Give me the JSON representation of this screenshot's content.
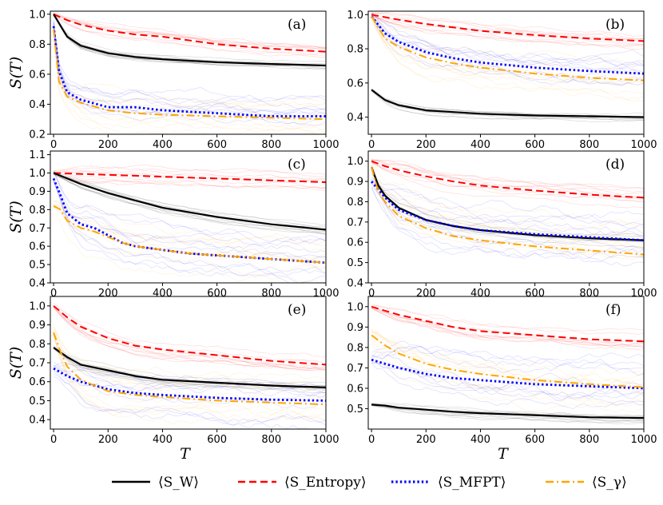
{
  "chart_data": {
    "type": "line",
    "x_label": "T",
    "y_label": "S(T)",
    "x_ticks": [
      0,
      200,
      400,
      600,
      800,
      1000
    ],
    "legend": [
      {
        "key": "sw",
        "label": "⟨S_W⟩",
        "color": "#000000",
        "dash": "solid"
      },
      {
        "key": "entropy",
        "label": "⟨S_Entropy⟩",
        "color": "#ff0000",
        "dash": "dashed"
      },
      {
        "key": "mfpt",
        "label": "⟨S_MFPT⟩",
        "color": "#0000ff",
        "dash": "dotted"
      },
      {
        "key": "gamma",
        "label": "⟨S_γ⟩",
        "color": "#ffa500",
        "dash": "dashdot"
      }
    ],
    "panels": [
      {
        "label": "(a)",
        "ylim": [
          0.2,
          1.02
        ],
        "y_ticks": [
          0.2,
          0.4,
          0.6,
          0.8,
          1.0
        ],
        "series": {
          "sw": {
            "x": [
              0,
              50,
              100,
              200,
              300,
              400,
              600,
              800,
              1000
            ],
            "y": [
              1.0,
              0.85,
              0.79,
              0.74,
              0.715,
              0.7,
              0.68,
              0.668,
              0.658
            ]
          },
          "entropy": {
            "x": [
              0,
              50,
              100,
              200,
              300,
              400,
              600,
              800,
              1000
            ],
            "y": [
              1.0,
              0.96,
              0.93,
              0.89,
              0.865,
              0.85,
              0.8,
              0.77,
              0.75
            ]
          },
          "mfpt": {
            "x": [
              0,
              20,
              50,
              100,
              200,
              300,
              400,
              600,
              800,
              1000
            ],
            "y": [
              0.92,
              0.62,
              0.48,
              0.43,
              0.38,
              0.38,
              0.36,
              0.34,
              0.32,
              0.32
            ]
          },
          "gamma": {
            "x": [
              0,
              20,
              50,
              100,
              200,
              300,
              400,
              600,
              800,
              1000
            ],
            "y": [
              0.9,
              0.55,
              0.45,
              0.41,
              0.36,
              0.34,
              0.33,
              0.32,
              0.31,
              0.3
            ]
          }
        }
      },
      {
        "label": "(b)",
        "ylim": [
          0.3,
          1.02
        ],
        "y_ticks": [
          0.4,
          0.6,
          0.8,
          1.0
        ],
        "series": {
          "sw": {
            "x": [
              0,
              50,
              100,
              200,
              300,
              400,
              600,
              800,
              1000
            ],
            "y": [
              0.56,
              0.5,
              0.47,
              0.44,
              0.43,
              0.42,
              0.41,
              0.405,
              0.4
            ]
          },
          "entropy": {
            "x": [
              0,
              50,
              100,
              200,
              300,
              400,
              600,
              800,
              1000
            ],
            "y": [
              1.0,
              0.985,
              0.97,
              0.945,
              0.925,
              0.905,
              0.88,
              0.86,
              0.845
            ]
          },
          "mfpt": {
            "x": [
              0,
              50,
              100,
              200,
              300,
              400,
              600,
              800,
              1000
            ],
            "y": [
              0.99,
              0.89,
              0.84,
              0.78,
              0.745,
              0.72,
              0.69,
              0.67,
              0.655
            ]
          },
          "gamma": {
            "x": [
              0,
              50,
              100,
              200,
              300,
              400,
              600,
              800,
              1000
            ],
            "y": [
              0.99,
              0.86,
              0.81,
              0.75,
              0.715,
              0.69,
              0.655,
              0.63,
              0.615
            ]
          }
        }
      },
      {
        "label": "(c)",
        "ylim": [
          0.4,
          1.12
        ],
        "y_ticks": [
          0.4,
          0.5,
          0.6,
          0.7,
          0.8,
          0.9,
          1.0,
          1.1
        ],
        "series": {
          "sw": {
            "x": [
              0,
              50,
              100,
              200,
              300,
              400,
              600,
              800,
              1000
            ],
            "y": [
              1.0,
              0.97,
              0.94,
              0.89,
              0.85,
              0.81,
              0.76,
              0.72,
              0.69
            ]
          },
          "entropy": {
            "x": [
              0,
              200,
              400,
              600,
              800,
              1000
            ],
            "y": [
              1.0,
              0.99,
              0.98,
              0.97,
              0.96,
              0.95
            ]
          },
          "mfpt": {
            "x": [
              0,
              25,
              50,
              75,
              100,
              150,
              200,
              250,
              300,
              350,
              400,
              500,
              600,
              700,
              800,
              900,
              1000
            ],
            "y": [
              0.97,
              0.88,
              0.78,
              0.75,
              0.72,
              0.7,
              0.66,
              0.62,
              0.6,
              0.59,
              0.58,
              0.56,
              0.55,
              0.54,
              0.53,
              0.52,
              0.51
            ]
          },
          "gamma": {
            "x": [
              0,
              25,
              50,
              75,
              100,
              150,
              200,
              250,
              300,
              350,
              400,
              500,
              600,
              700,
              800,
              900,
              1000
            ],
            "y": [
              0.82,
              0.8,
              0.74,
              0.72,
              0.7,
              0.68,
              0.65,
              0.62,
              0.6,
              0.59,
              0.58,
              0.56,
              0.55,
              0.54,
              0.53,
              0.52,
              0.51
            ]
          }
        }
      },
      {
        "label": "(d)",
        "ylim": [
          0.4,
          1.05
        ],
        "y_ticks": [
          0.4,
          0.5,
          0.6,
          0.7,
          0.8,
          0.9,
          1.0
        ],
        "series": {
          "sw": {
            "x": [
              0,
              25,
              50,
              100,
              200,
              300,
              400,
              600,
              800,
              1000
            ],
            "y": [
              0.97,
              0.88,
              0.83,
              0.77,
              0.71,
              0.68,
              0.66,
              0.635,
              0.62,
              0.61
            ]
          },
          "entropy": {
            "x": [
              0,
              50,
              100,
              200,
              300,
              400,
              600,
              800,
              1000
            ],
            "y": [
              1.0,
              0.975,
              0.955,
              0.925,
              0.9,
              0.88,
              0.855,
              0.835,
              0.82
            ]
          },
          "mfpt": {
            "x": [
              0,
              25,
              50,
              100,
              200,
              300,
              400,
              600,
              800,
              1000
            ],
            "y": [
              0.9,
              0.86,
              0.82,
              0.76,
              0.71,
              0.68,
              0.66,
              0.64,
              0.625,
              0.61
            ]
          },
          "gamma": {
            "x": [
              0,
              25,
              50,
              100,
              200,
              300,
              400,
              600,
              800,
              1000
            ],
            "y": [
              0.97,
              0.85,
              0.8,
              0.73,
              0.67,
              0.63,
              0.61,
              0.58,
              0.56,
              0.54
            ]
          }
        }
      },
      {
        "label": "(e)",
        "ylim": [
          0.35,
          1.05
        ],
        "y_ticks": [
          0.4,
          0.5,
          0.6,
          0.7,
          0.8,
          0.9,
          1.0
        ],
        "series": {
          "sw": {
            "x": [
              0,
              50,
              100,
              200,
              300,
              400,
              600,
              800,
              1000
            ],
            "y": [
              0.78,
              0.73,
              0.69,
              0.66,
              0.63,
              0.61,
              0.595,
              0.58,
              0.57
            ]
          },
          "entropy": {
            "x": [
              0,
              50,
              100,
              200,
              300,
              400,
              600,
              800,
              1000
            ],
            "y": [
              1.0,
              0.94,
              0.89,
              0.83,
              0.79,
              0.77,
              0.74,
              0.71,
              0.69
            ]
          },
          "mfpt": {
            "x": [
              0,
              50,
              100,
              200,
              300,
              400,
              600,
              800,
              1000
            ],
            "y": [
              0.67,
              0.63,
              0.6,
              0.56,
              0.54,
              0.53,
              0.515,
              0.505,
              0.5
            ]
          },
          "gamma": {
            "x": [
              0,
              25,
              50,
              100,
              200,
              300,
              400,
              600,
              800,
              1000
            ],
            "y": [
              0.86,
              0.76,
              0.68,
              0.61,
              0.55,
              0.53,
              0.52,
              0.5,
              0.49,
              0.48
            ]
          }
        }
      },
      {
        "label": "(f)",
        "ylim": [
          0.4,
          1.05
        ],
        "y_ticks": [
          0.5,
          0.6,
          0.7,
          0.8,
          0.9,
          1.0
        ],
        "series": {
          "sw": {
            "x": [
              0,
              50,
              100,
              200,
              300,
              400,
              600,
              800,
              1000
            ],
            "y": [
              0.52,
              0.515,
              0.505,
              0.495,
              0.485,
              0.478,
              0.468,
              0.458,
              0.455
            ]
          },
          "entropy": {
            "x": [
              0,
              50,
              100,
              200,
              300,
              400,
              600,
              800,
              1000
            ],
            "y": [
              1.0,
              0.98,
              0.96,
              0.93,
              0.9,
              0.88,
              0.86,
              0.84,
              0.83
            ]
          },
          "mfpt": {
            "x": [
              0,
              50,
              100,
              200,
              300,
              400,
              600,
              800,
              1000
            ],
            "y": [
              0.74,
              0.72,
              0.7,
              0.67,
              0.65,
              0.64,
              0.62,
              0.61,
              0.6
            ]
          },
          "gamma": {
            "x": [
              0,
              50,
              100,
              200,
              300,
              400,
              600,
              800,
              1000
            ],
            "y": [
              0.86,
              0.81,
              0.77,
              0.72,
              0.69,
              0.67,
              0.64,
              0.62,
              0.605
            ]
          }
        }
      }
    ]
  }
}
